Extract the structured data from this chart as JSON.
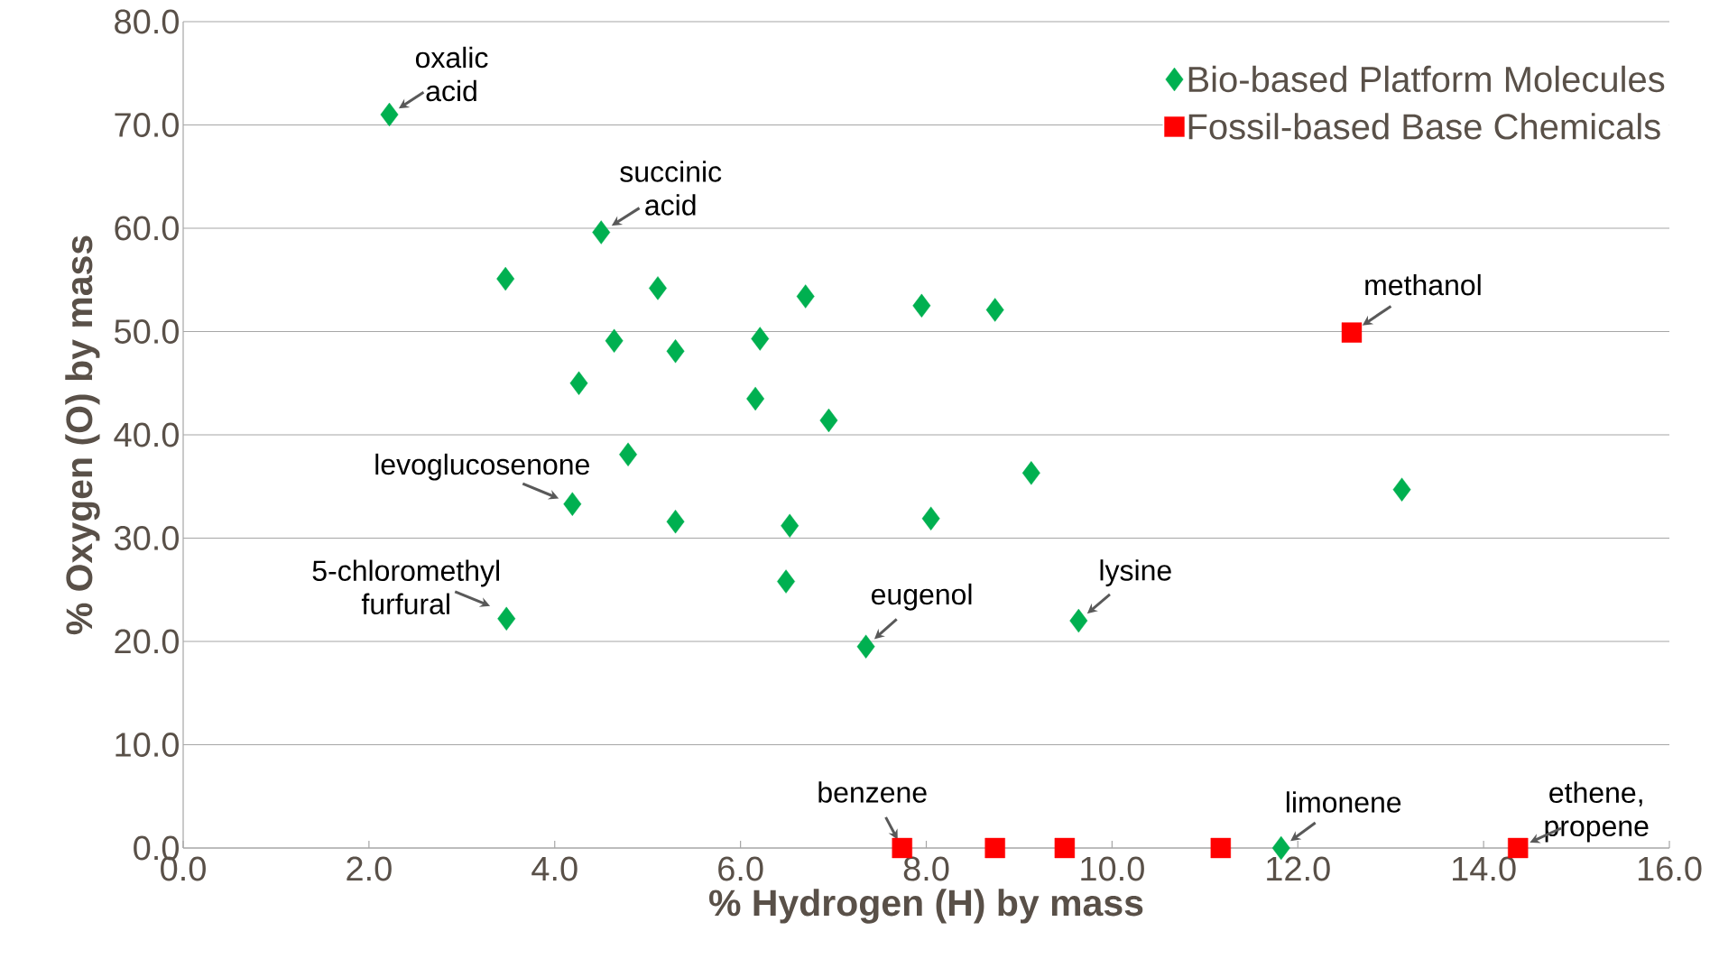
{
  "chart_data": {
    "type": "scatter",
    "xlabel": "% Hydrogen (H) by mass",
    "ylabel": "% Oxygen (O) by mass",
    "xlim": [
      0,
      16
    ],
    "ylim": [
      0,
      80
    ],
    "xticks": [
      {
        "value": 0,
        "label": "0.0"
      },
      {
        "value": 2,
        "label": "2.0"
      },
      {
        "value": 4,
        "label": "4.0"
      },
      {
        "value": 6,
        "label": "6.0"
      },
      {
        "value": 8,
        "label": "8.0"
      },
      {
        "value": 10,
        "label": "10.0"
      },
      {
        "value": 12,
        "label": "12.0"
      },
      {
        "value": 14,
        "label": "14.0"
      },
      {
        "value": 16,
        "label": "16.0"
      }
    ],
    "yticks": [
      {
        "value": 0,
        "label": "0.0"
      },
      {
        "value": 10,
        "label": "10.0"
      },
      {
        "value": 20,
        "label": "20.0"
      },
      {
        "value": 30,
        "label": "30.0"
      },
      {
        "value": 40,
        "label": "40.0"
      },
      {
        "value": 50,
        "label": "50.0"
      },
      {
        "value": 60,
        "label": "60.0"
      },
      {
        "value": 70,
        "label": "70.0"
      },
      {
        "value": 80,
        "label": "80.0"
      }
    ],
    "grid": "y",
    "legend": "top right",
    "series": [
      {
        "name": "Bio-based Platform Molecules",
        "color": "#00b050",
        "marker": "diamond",
        "x": [
          2.22,
          4.5,
          3.47,
          5.11,
          6.7,
          7.95,
          8.74,
          4.64,
          5.3,
          6.21,
          4.26,
          6.16,
          6.95,
          4.79,
          9.13,
          13.12,
          4.19,
          5.3,
          6.53,
          8.05,
          6.49,
          3.48,
          9.64,
          7.35,
          11.82
        ],
        "values": [
          71.0,
          59.6,
          55.1,
          54.2,
          53.4,
          52.5,
          52.1,
          49.1,
          48.1,
          49.3,
          45.0,
          43.5,
          41.4,
          38.1,
          36.3,
          34.7,
          33.3,
          31.6,
          31.2,
          31.9,
          25.8,
          22.2,
          22.0,
          19.5,
          0
        ]
      },
      {
        "name": "Fossil-based Base Chemicals",
        "color": "#ff0000",
        "marker": "square",
        "x": [
          7.74,
          8.74,
          9.49,
          11.17,
          14.37,
          12.58
        ],
        "values": [
          0,
          0,
          0,
          0,
          0,
          49.9
        ]
      }
    ],
    "annotations": [
      {
        "text": "oxalic acid",
        "x": 2.22,
        "y": 71.0
      },
      {
        "text": "succinic acid",
        "x": 4.5,
        "y": 59.6
      },
      {
        "text": "methanol",
        "x": 12.58,
        "y": 49.9
      },
      {
        "text": "levoglucosenone",
        "x": 4.19,
        "y": 33.3
      },
      {
        "text": "5-chloromethyl furfural",
        "x": 3.48,
        "y": 22.2
      },
      {
        "text": "eugenol",
        "x": 7.35,
        "y": 19.5
      },
      {
        "text": "lysine",
        "x": 9.64,
        "y": 22.0
      },
      {
        "text": "benzene",
        "x": 7.74,
        "y": 0
      },
      {
        "text": "limonene",
        "x": 11.82,
        "y": 0
      },
      {
        "text": "ethene, propene",
        "x": 14.37,
        "y": 0
      }
    ]
  }
}
